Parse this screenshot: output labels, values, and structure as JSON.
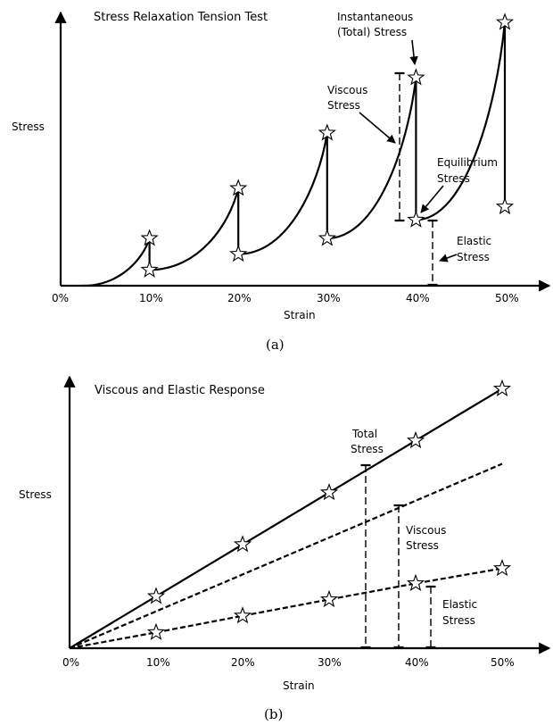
{
  "panel_a": {
    "caption": "(a)",
    "title": "Stress Relaxation Tension Test",
    "ylabel": "Stress",
    "xlabel": "Strain",
    "annotations": {
      "instantaneous": [
        "Instantaneous",
        "(Total) Stress"
      ],
      "viscous": [
        "Viscous",
        "Stress"
      ],
      "equilibrium": [
        "Equilibrium",
        "Stress"
      ],
      "elastic": [
        "Elastic",
        "Stress"
      ]
    }
  },
  "panel_b": {
    "caption": "(b)",
    "title": "Viscous and Elastic Response",
    "ylabel": "Stress",
    "xlabel": "Strain",
    "annotations": {
      "total": [
        "Total",
        "Stress"
      ],
      "viscous": [
        "Viscous",
        "Stress"
      ],
      "elastic": [
        "Elastic",
        "Stress"
      ]
    }
  },
  "chart_data": [
    {
      "type": "line",
      "title": "Stress Relaxation Tension Test",
      "xlabel": "Strain",
      "ylabel": "Stress",
      "x_ticks": [
        "0%",
        "10%",
        "20%",
        "30%",
        "40%",
        "50%"
      ],
      "xlim": [
        0,
        55
      ],
      "ylim": [
        0,
        100
      ],
      "ramp_segments": [
        {
          "x0": 2.5,
          "y0": 0,
          "x1": 10,
          "y1": 18
        },
        {
          "x0": 10,
          "y0": 6,
          "x1": 20,
          "y1": 37
        },
        {
          "x0": 20,
          "y0": 12,
          "x1": 30,
          "y1": 58
        },
        {
          "x0": 30,
          "y0": 18,
          "x1": 40,
          "y1": 79
        },
        {
          "x0": 40,
          "y0": 25,
          "x1": 50,
          "y1": 100
        }
      ],
      "peaks": [
        {
          "x": 10,
          "y": 18
        },
        {
          "x": 20,
          "y": 37
        },
        {
          "x": 30,
          "y": 58
        },
        {
          "x": 40,
          "y": 79
        },
        {
          "x": 50,
          "y": 100
        }
      ],
      "equilibrium": [
        {
          "x": 10,
          "y": 6
        },
        {
          "x": 20,
          "y": 12
        },
        {
          "x": 30,
          "y": 18
        },
        {
          "x": 40,
          "y": 25
        },
        {
          "x": 50,
          "y": 30
        }
      ]
    },
    {
      "type": "line",
      "title": "Viscous and Elastic Response",
      "xlabel": "Strain",
      "ylabel": "Stress",
      "x_ticks": [
        "0%",
        "10%",
        "20%",
        "30%",
        "40%",
        "50%"
      ],
      "xlim": [
        0,
        55
      ],
      "ylim": [
        0,
        100
      ],
      "series": [
        {
          "style": "solid",
          "x": [
            0,
            10,
            20,
            30,
            40,
            50
          ],
          "y": [
            0,
            19.7,
            39.4,
            59.1,
            78.8,
            98.5
          ],
          "markers": [
            10,
            20,
            30,
            40,
            50
          ]
        },
        {
          "style": "dashed",
          "x": [
            0,
            50
          ],
          "y": [
            0,
            70
          ]
        },
        {
          "style": "dashed",
          "x": [
            0,
            10,
            20,
            30,
            40,
            50
          ],
          "y": [
            0,
            6,
            12.3,
            18.5,
            24.6,
            30.3
          ],
          "markers": [
            10,
            20,
            30,
            40,
            50
          ]
        }
      ],
      "markers": [
        {
          "x": 10,
          "y": 19.7
        },
        {
          "x": 20,
          "y": 39.4
        },
        {
          "x": 30,
          "y": 59.1
        },
        {
          "x": 40,
          "y": 78.8
        },
        {
          "x": 50,
          "y": 98.5
        },
        {
          "x": 10,
          "y": 6
        },
        {
          "x": 20,
          "y": 12.3
        },
        {
          "x": 30,
          "y": 18.5
        },
        {
          "x": 40,
          "y": 24.6
        },
        {
          "x": 50,
          "y": 30.3
        }
      ]
    }
  ]
}
